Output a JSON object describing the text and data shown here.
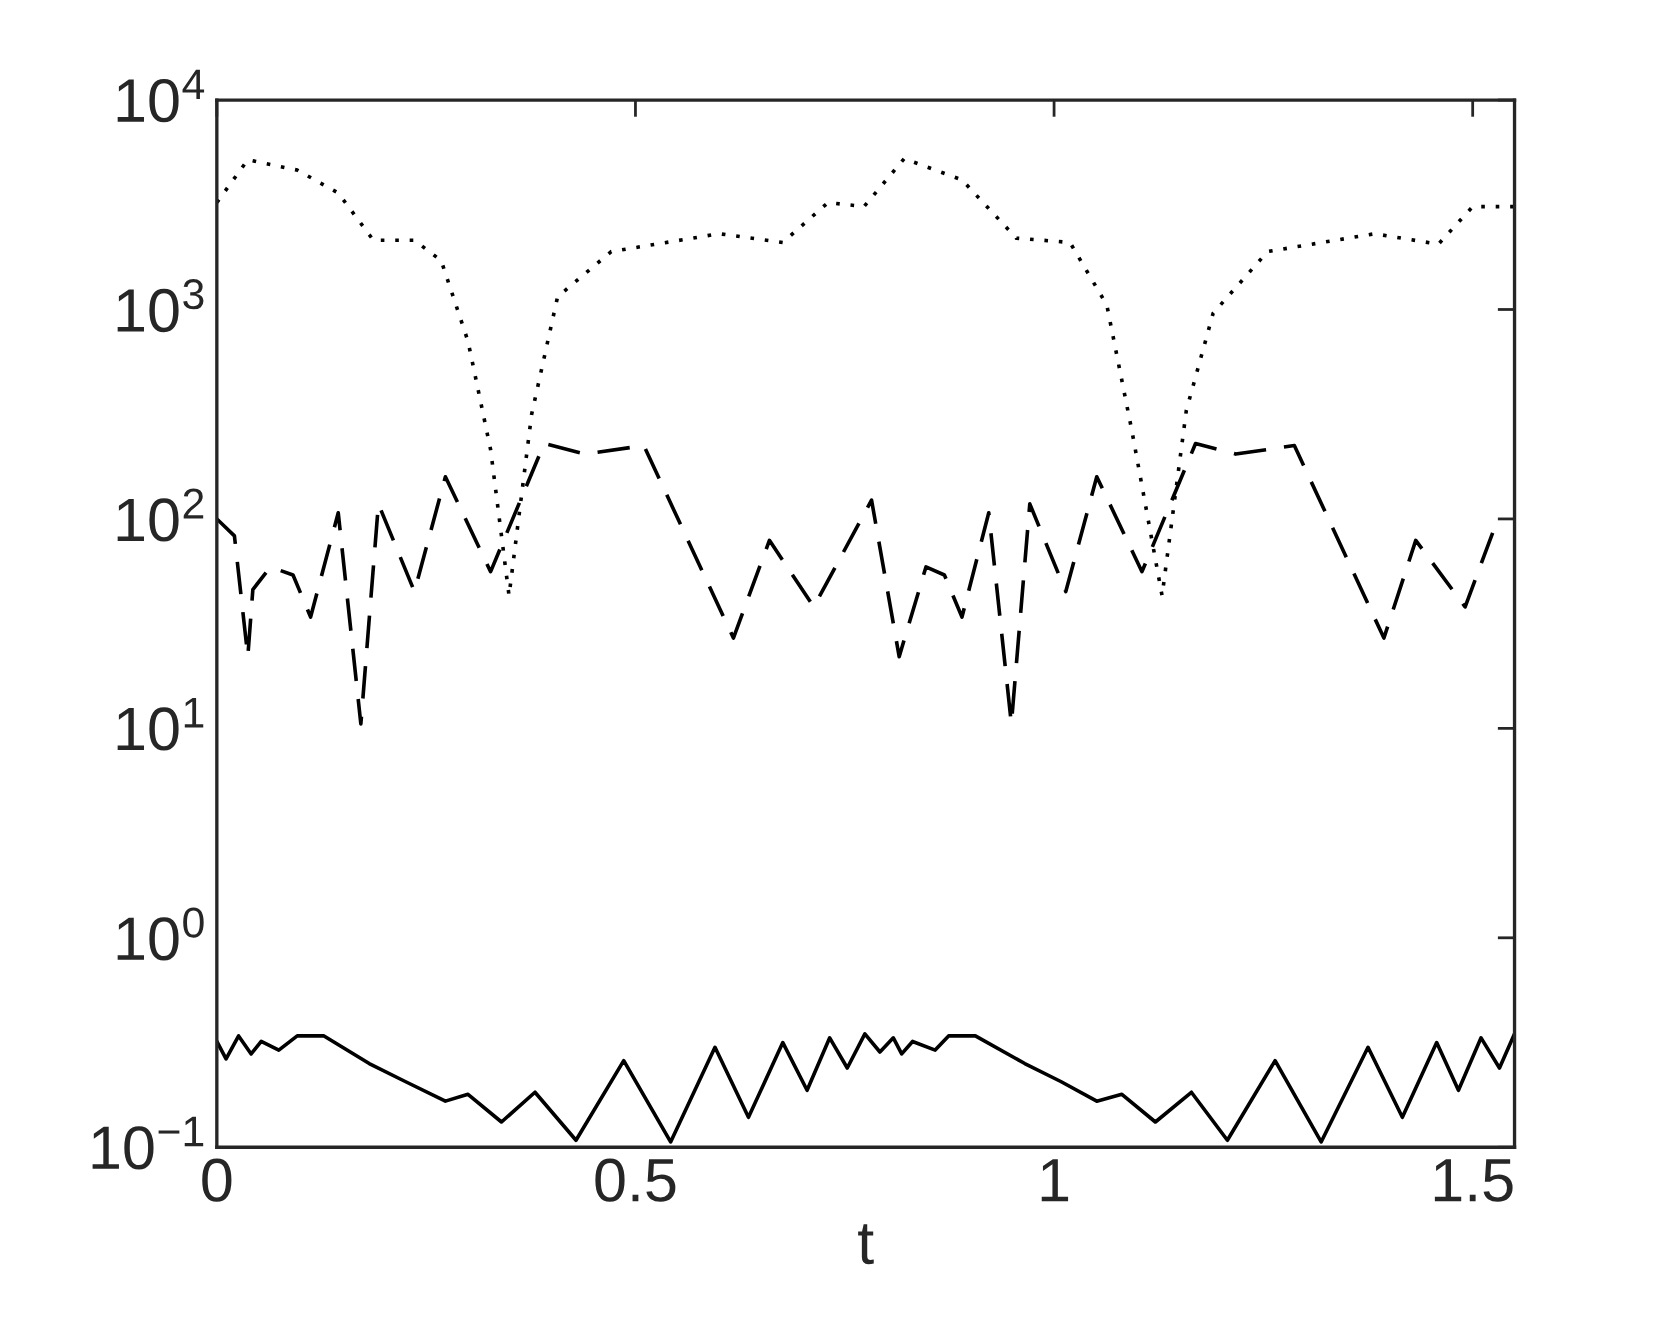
{
  "chart_data": {
    "type": "line",
    "xlabel": "t",
    "log": "y",
    "grid": false,
    "marker": "none",
    "xlim": [
      0,
      1.55
    ],
    "xticks": [
      0,
      0.5,
      1,
      1.5
    ],
    "ylim": [
      0.1,
      10000
    ],
    "yticks": [
      {
        "value": 0.1,
        "label": "10$^{−1}$"
      },
      {
        "value": 1,
        "label": "10$^{0}$"
      },
      {
        "value": 10,
        "label": "10$^{1}$"
      },
      {
        "value": 100,
        "label": "10$^{2}$"
      },
      {
        "value": 1000,
        "label": "10$^{3}$"
      },
      {
        "value": 10000,
        "label": "10$^{4}$"
      }
    ],
    "series": [
      {
        "color": "#000000",
        "line_style": "dotted",
        "x": [
          0,
          0.037,
          0.096,
          0.145,
          0.187,
          0.236,
          0.268,
          0.3,
          0.327,
          0.349,
          0.376,
          0.407,
          0.471,
          0.6,
          0.676,
          0.73,
          0.773,
          0.821,
          0.89,
          0.955,
          1.019,
          1.063,
          1.093,
          1.129,
          1.158,
          1.19,
          1.255,
          1.383,
          1.459,
          1.5,
          1.55
        ],
        "values": [
          3240,
          5190,
          4630,
          3600,
          2140,
          2140,
          1710,
          705,
          214,
          43,
          316,
          1150,
          1890,
          2300,
          2090,
          3240,
          3100,
          5250,
          4160,
          2190,
          2090,
          1050,
          263,
          43,
          330,
          960,
          1890,
          2300,
          2050,
          3100,
          3100
        ]
      },
      {
        "color": "#000000",
        "line_style": "dashed",
        "x": [
          0,
          0.021,
          0.037,
          0.043,
          0.064,
          0.091,
          0.112,
          0.145,
          0.172,
          0.193,
          0.236,
          0.273,
          0.327,
          0.391,
          0.44,
          0.51,
          0.617,
          0.66,
          0.713,
          0.782,
          0.815,
          0.847,
          0.869,
          0.89,
          0.922,
          0.949,
          0.971,
          1.014,
          1.051,
          1.105,
          1.169,
          1.217,
          1.287,
          1.394,
          1.432,
          1.491,
          1.53
        ],
        "values": [
          100,
          83,
          22,
          46,
          59,
          54,
          34,
          107,
          10.5,
          118,
          45,
          159,
          56,
          229,
          204,
          224,
          27,
          79,
          38,
          123,
          22,
          59,
          54,
          34,
          107,
          10.5,
          118,
          45,
          159,
          56,
          229,
          204,
          224,
          27,
          79,
          38,
          100
        ]
      },
      {
        "color": "#000000",
        "line_style": "solid",
        "x": [
          0,
          0.011,
          0.026,
          0.041,
          0.053,
          0.074,
          0.096,
          0.128,
          0.182,
          0.225,
          0.273,
          0.3,
          0.34,
          0.38,
          0.429,
          0.486,
          0.542,
          0.595,
          0.635,
          0.676,
          0.705,
          0.732,
          0.753,
          0.774,
          0.792,
          0.808,
          0.818,
          0.831,
          0.858,
          0.874,
          0.906,
          0.965,
          1.008,
          1.051,
          1.081,
          1.121,
          1.164,
          1.207,
          1.264,
          1.319,
          1.375,
          1.416,
          1.457,
          1.483,
          1.51,
          1.532,
          1.55
        ],
        "values": [
          0.32,
          0.264,
          0.34,
          0.279,
          0.32,
          0.291,
          0.34,
          0.34,
          0.251,
          0.206,
          0.166,
          0.179,
          0.132,
          0.183,
          0.108,
          0.259,
          0.106,
          0.3,
          0.139,
          0.316,
          0.187,
          0.333,
          0.239,
          0.348,
          0.285,
          0.333,
          0.279,
          0.32,
          0.291,
          0.34,
          0.34,
          0.251,
          0.206,
          0.166,
          0.179,
          0.132,
          0.183,
          0.108,
          0.259,
          0.106,
          0.3,
          0.139,
          0.316,
          0.187,
          0.333,
          0.239,
          0.348
        ]
      }
    ]
  }
}
